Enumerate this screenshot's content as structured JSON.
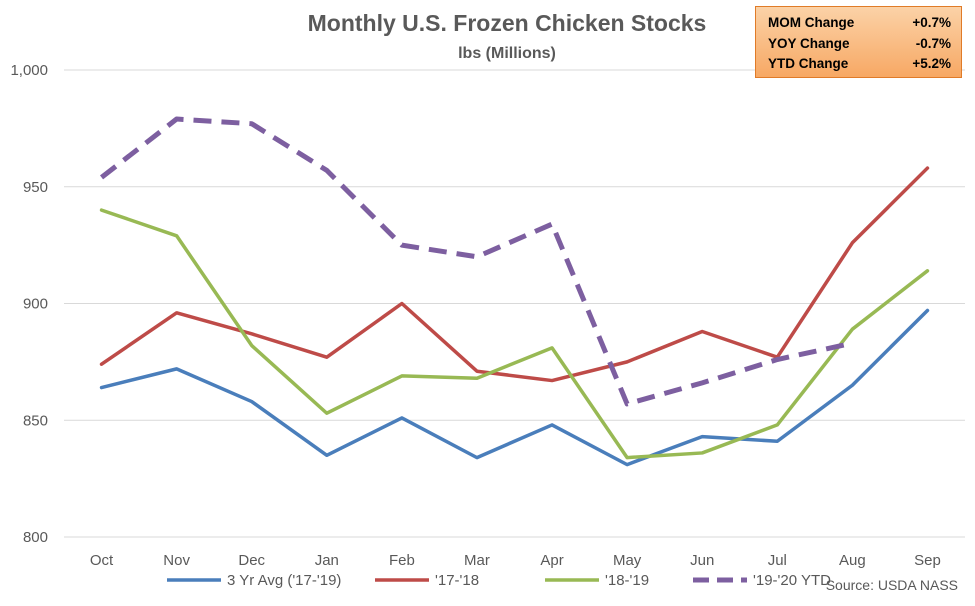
{
  "chart_data": {
    "type": "line",
    "title": "Monthly U.S. Frozen Chicken Stocks",
    "subtitle": "lbs (Millions)",
    "categories": [
      "Oct",
      "Nov",
      "Dec",
      "Jan",
      "Feb",
      "Mar",
      "Apr",
      "May",
      "Jun",
      "Jul",
      "Aug",
      "Sep"
    ],
    "ylim": [
      800,
      1000
    ],
    "yticks": [
      "800",
      "850",
      "900",
      "950",
      "1,000"
    ],
    "grid": true,
    "legend_position": "bottom",
    "series": [
      {
        "name": "3 Yr Avg ('17-'19)",
        "color": "#4a7ebb",
        "dashed": false,
        "values": [
          864,
          872,
          858,
          835,
          851,
          834,
          848,
          831,
          843,
          841,
          865,
          897
        ]
      },
      {
        "name": "'17-'18",
        "color": "#be4b48",
        "dashed": false,
        "values": [
          874,
          896,
          887,
          877,
          900,
          871,
          867,
          875,
          888,
          877,
          926,
          958
        ]
      },
      {
        "name": "'18-'19",
        "color": "#98b954",
        "dashed": false,
        "values": [
          940,
          929,
          882,
          853,
          869,
          868,
          881,
          834,
          836,
          848,
          889,
          914
        ]
      },
      {
        "name": "'19-'20 YTD",
        "color": "#7d5fa0",
        "dashed": true,
        "values": [
          954,
          979,
          977,
          957,
          925,
          920,
          934,
          857,
          866,
          876,
          883,
          null
        ]
      }
    ],
    "source": "Source: USDA NASS"
  },
  "stats": [
    {
      "label": "MOM Change",
      "value": "+0.7%"
    },
    {
      "label": "YOY Change",
      "value": "-0.7%"
    },
    {
      "label": "YTD Change",
      "value": "+5.2%"
    }
  ]
}
